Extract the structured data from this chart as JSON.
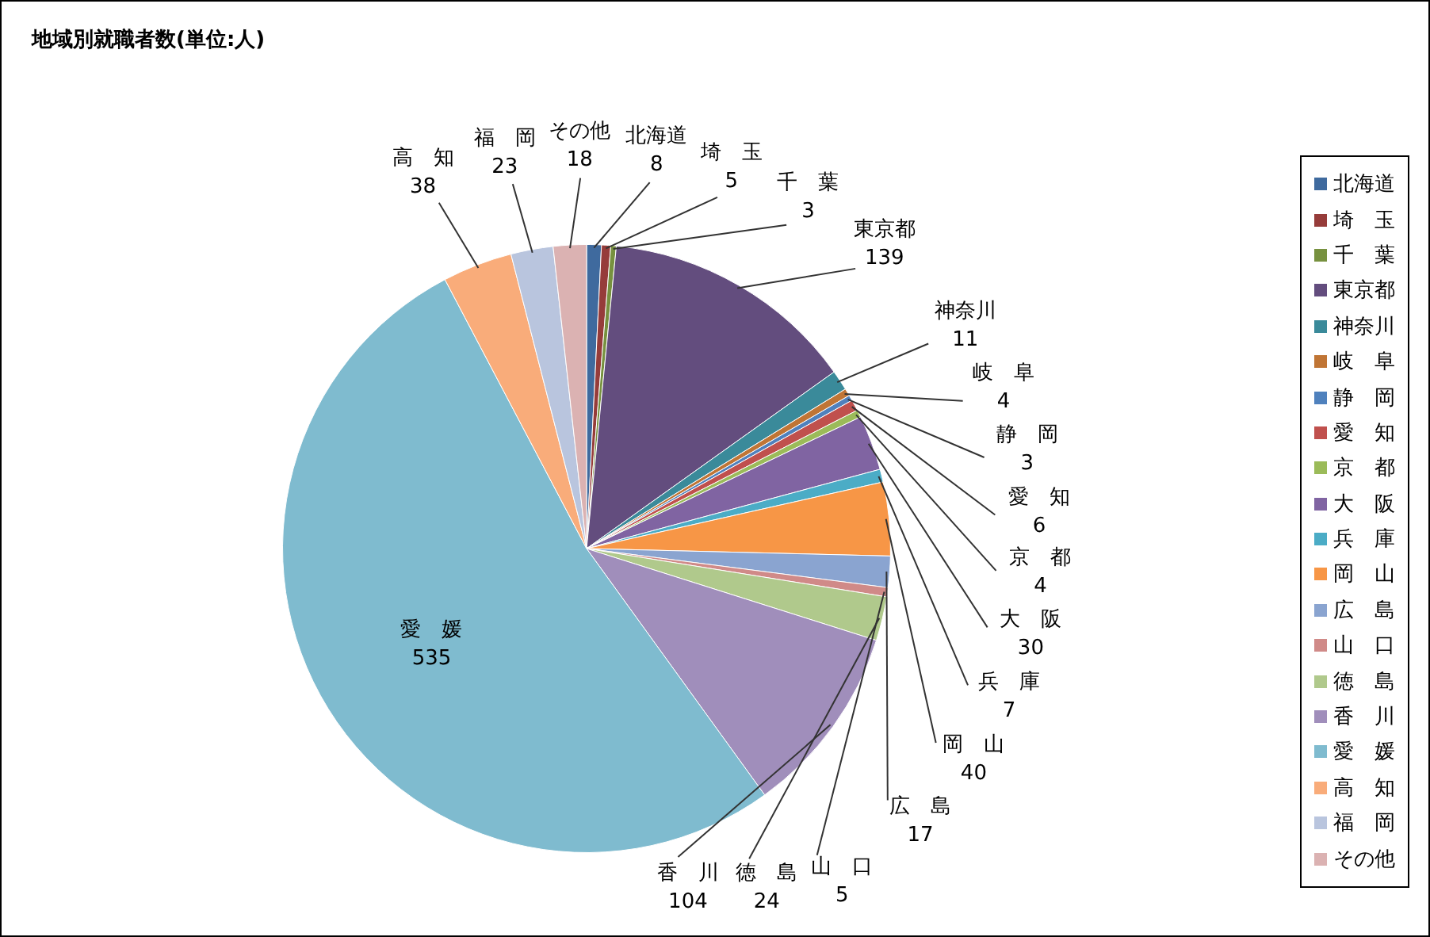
{
  "chart_data": {
    "type": "pie",
    "title": "地域別就職者数(単位:人)",
    "categories": [
      "北海道",
      "埼　玉",
      "千　葉",
      "東京都",
      "神奈川",
      "岐　阜",
      "静　岡",
      "愛　知",
      "京　都",
      "大　阪",
      "兵　庫",
      "岡　山",
      "広　島",
      "山　口",
      "徳　島",
      "香　川",
      "愛　媛",
      "高　知",
      "福　岡",
      "その他"
    ],
    "values": [
      8,
      5,
      3,
      139,
      11,
      4,
      3,
      6,
      4,
      30,
      7,
      40,
      17,
      5,
      24,
      104,
      535,
      38,
      23,
      18
    ],
    "colors": [
      "#3f6a9e",
      "#963c3a",
      "#77913f",
      "#634d7e",
      "#3a8a9a",
      "#c07535",
      "#4f81bd",
      "#c0504d",
      "#9bbb59",
      "#8064a2",
      "#4bacc6",
      "#f79646",
      "#8aa4d0",
      "#d08a88",
      "#b0c98c",
      "#a08ebb",
      "#7fbbcf",
      "#f9ac7a",
      "#b9c5de",
      "#dbb2b2"
    ],
    "data_labels": true,
    "legend": "right"
  }
}
